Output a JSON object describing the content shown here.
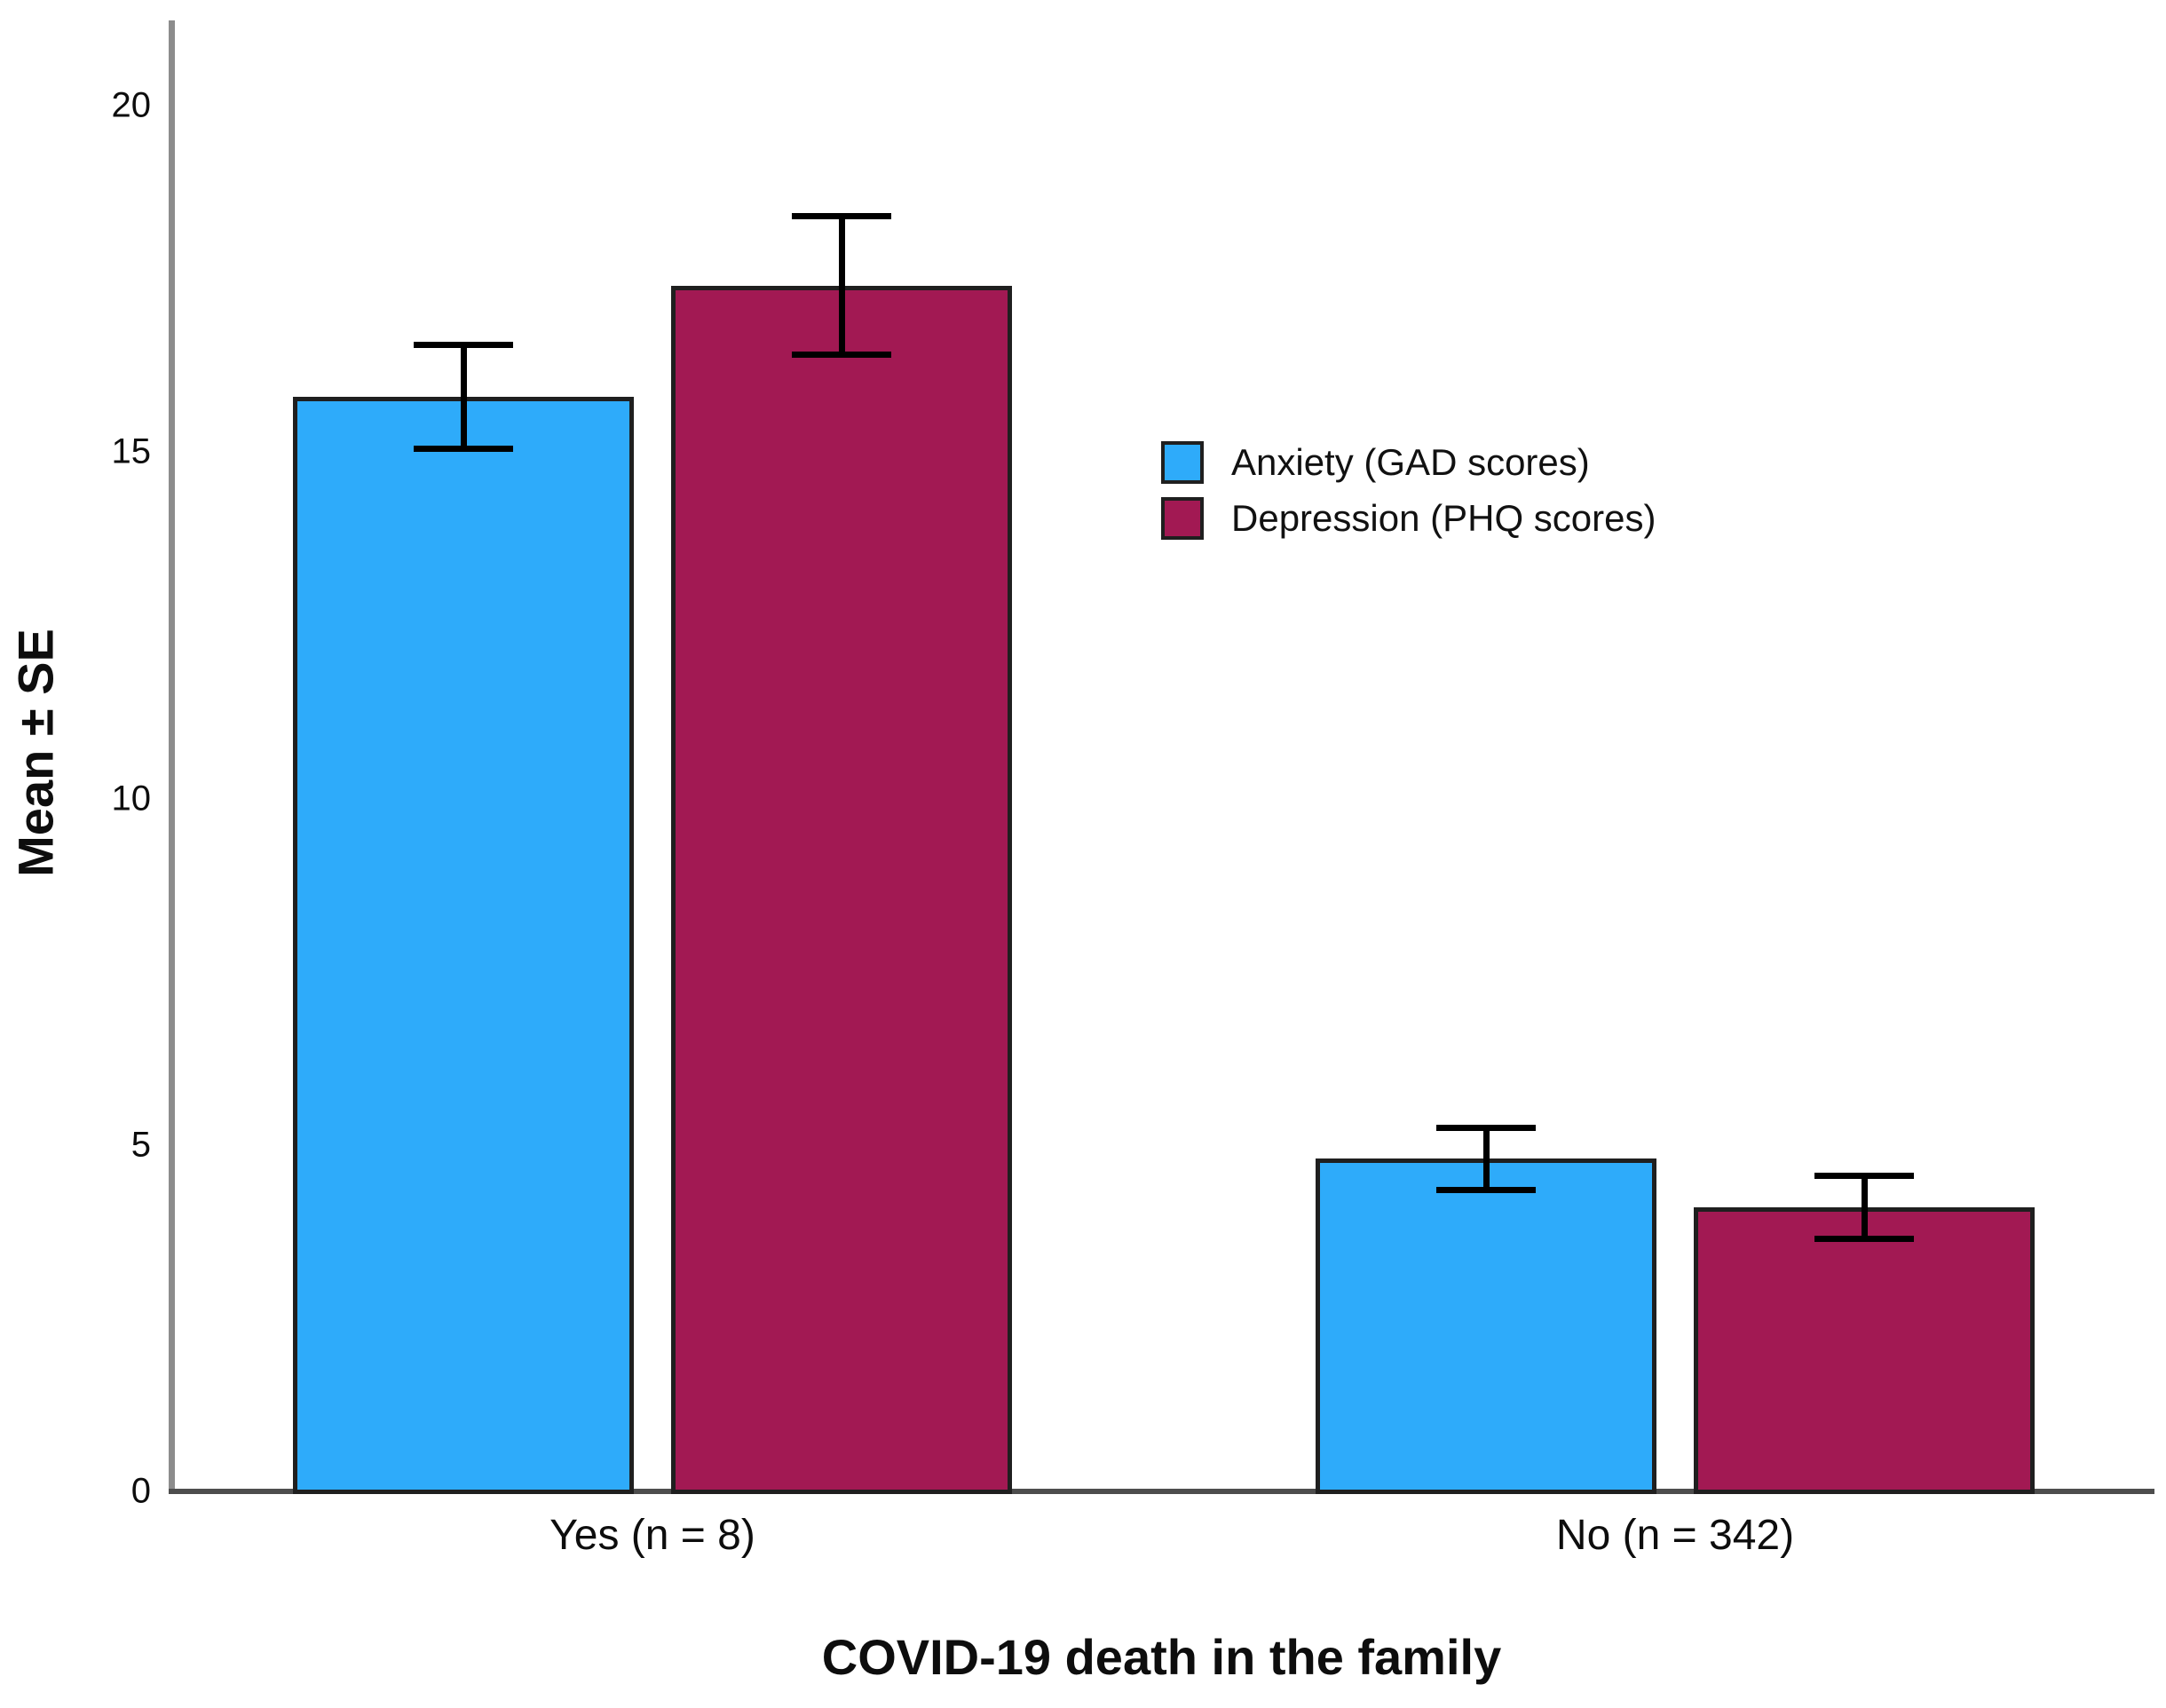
{
  "chart_data": {
    "type": "bar",
    "title": "",
    "xlabel": "COVID-19 death in the family",
    "ylabel": "Mean ± SE",
    "categories": [
      "Yes (n = 8)",
      "No (n = 342)"
    ],
    "series": [
      {
        "name": "Anxiety (GAD scores)",
        "color": "#2EABFA",
        "values": [
          15.8,
          4.8
        ],
        "se": [
          0.75,
          0.45
        ]
      },
      {
        "name": "Depression (PHQ scores)",
        "color": "#A21953",
        "values": [
          17.4,
          4.1
        ],
        "se": [
          1.0,
          0.45
        ]
      }
    ],
    "y_ticks": [
      0,
      5,
      10,
      15,
      20
    ],
    "ylim": [
      0,
      21.2
    ],
    "grid": false,
    "legend_position": "center-right",
    "error_bars": "±SE",
    "bar_outline_color": "#1f1f1f",
    "axis_line_color": "#8c8c8c"
  }
}
